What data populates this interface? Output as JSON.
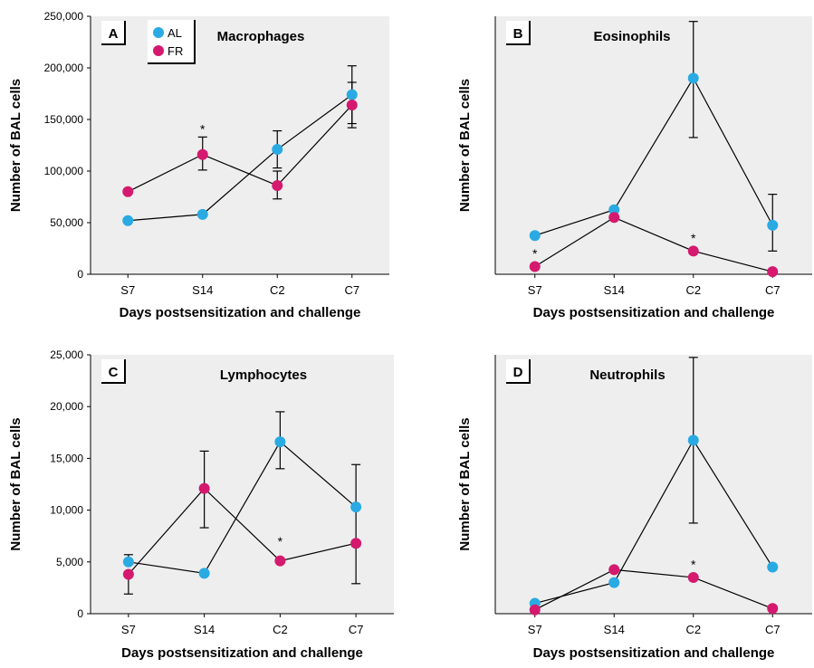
{
  "figure": {
    "series_colors": {
      "AL": "#2aaae2",
      "FR": "#d4196e"
    },
    "plot_background": "#eeeeee",
    "axis_color": "#000000"
  },
  "chart_data": [
    {
      "panel": "A",
      "type": "line",
      "title": "Macrophages",
      "xlabel": "Days postsensitization and challenge",
      "ylabel": "Number of BAL cells",
      "categories": [
        "S7",
        "S14",
        "C2",
        "C7"
      ],
      "ylim": [
        0,
        250000
      ],
      "yticks": [
        0,
        50000,
        100000,
        150000,
        200000,
        250000
      ],
      "ytick_labels": [
        "0",
        "50,000",
        "100,000",
        "150,000",
        "200,000",
        "250,000"
      ],
      "legend": {
        "position": "top-left",
        "entries": [
          "AL",
          "FR"
        ]
      },
      "series": [
        {
          "name": "AL",
          "values": [
            52000,
            58000,
            121000,
            174000
          ],
          "err_upper": [
            null,
            null,
            139000,
            202000
          ],
          "err_lower": [
            null,
            null,
            103000,
            146000
          ]
        },
        {
          "name": "FR",
          "values": [
            80000,
            116000,
            86000,
            164000
          ],
          "err_upper": [
            null,
            133000,
            100000,
            186000
          ],
          "err_lower": [
            null,
            101000,
            73000,
            142000
          ]
        }
      ],
      "annotations": [
        {
          "text": "*",
          "category": "S14",
          "y": 141000
        }
      ]
    },
    {
      "panel": "B",
      "type": "line",
      "title": "Eosinophils",
      "xlabel": "Days postsensitization and challenge",
      "ylabel": "Number of BAL cells",
      "categories": [
        "S7",
        "S14",
        "C2",
        "C7"
      ],
      "ylim": [
        0,
        100
      ],
      "yticks": [],
      "ytick_labels": [],
      "legend": null,
      "series": [
        {
          "name": "AL",
          "values": [
            15,
            25,
            76,
            19
          ],
          "err_upper": [
            null,
            null,
            98,
            31
          ],
          "err_lower": [
            null,
            null,
            53,
            9
          ]
        },
        {
          "name": "FR",
          "values": [
            3,
            22,
            9,
            1
          ],
          "err_upper": [
            null,
            null,
            null,
            null
          ],
          "err_lower": [
            null,
            null,
            null,
            null
          ]
        }
      ],
      "annotations": [
        {
          "text": "*",
          "category": "S7",
          "y": 8
        },
        {
          "text": "*",
          "category": "C2",
          "y": 14
        }
      ]
    },
    {
      "panel": "C",
      "type": "line",
      "title": "Lymphocytes",
      "xlabel": "Days postsensitization and challenge",
      "ylabel": "Number of BAL cells",
      "categories": [
        "S7",
        "S14",
        "C2",
        "C7"
      ],
      "ylim": [
        0,
        25000
      ],
      "yticks": [
        0,
        5000,
        10000,
        15000,
        20000,
        25000
      ],
      "ytick_labels": [
        "0",
        "5,000",
        "10,000",
        "15,000",
        "20,000",
        "25,000"
      ],
      "legend": null,
      "series": [
        {
          "name": "AL",
          "values": [
            5000,
            3900,
            16600,
            10300
          ],
          "err_upper": [
            5700,
            null,
            19500,
            14400
          ],
          "err_lower": [
            null,
            null,
            14000,
            6500
          ]
        },
        {
          "name": "FR",
          "values": [
            3800,
            12100,
            5100,
            6800
          ],
          "err_upper": [
            null,
            15700,
            null,
            null
          ],
          "err_lower": [
            1900,
            8300,
            null,
            2900
          ]
        }
      ],
      "annotations": [
        {
          "text": "*",
          "category": "C2",
          "y": 7000
        }
      ]
    },
    {
      "panel": "D",
      "type": "line",
      "title": "Neutrophils",
      "xlabel": "Days postsensitization and challenge",
      "ylabel": "Number of BAL cells",
      "categories": [
        "S7",
        "S14",
        "C2",
        "C7"
      ],
      "ylim": [
        0,
        100
      ],
      "yticks": [],
      "ytick_labels": [],
      "legend": null,
      "series": [
        {
          "name": "AL",
          "values": [
            4,
            12,
            67,
            18
          ],
          "err_upper": [
            null,
            null,
            99,
            null
          ],
          "err_lower": [
            null,
            null,
            35,
            null
          ]
        },
        {
          "name": "FR",
          "values": [
            1.5,
            17,
            14,
            2
          ],
          "err_upper": [
            null,
            null,
            null,
            null
          ],
          "err_lower": [
            null,
            null,
            null,
            null
          ]
        }
      ],
      "annotations": [
        {
          "text": "*",
          "category": "C2",
          "y": 19
        }
      ]
    }
  ]
}
